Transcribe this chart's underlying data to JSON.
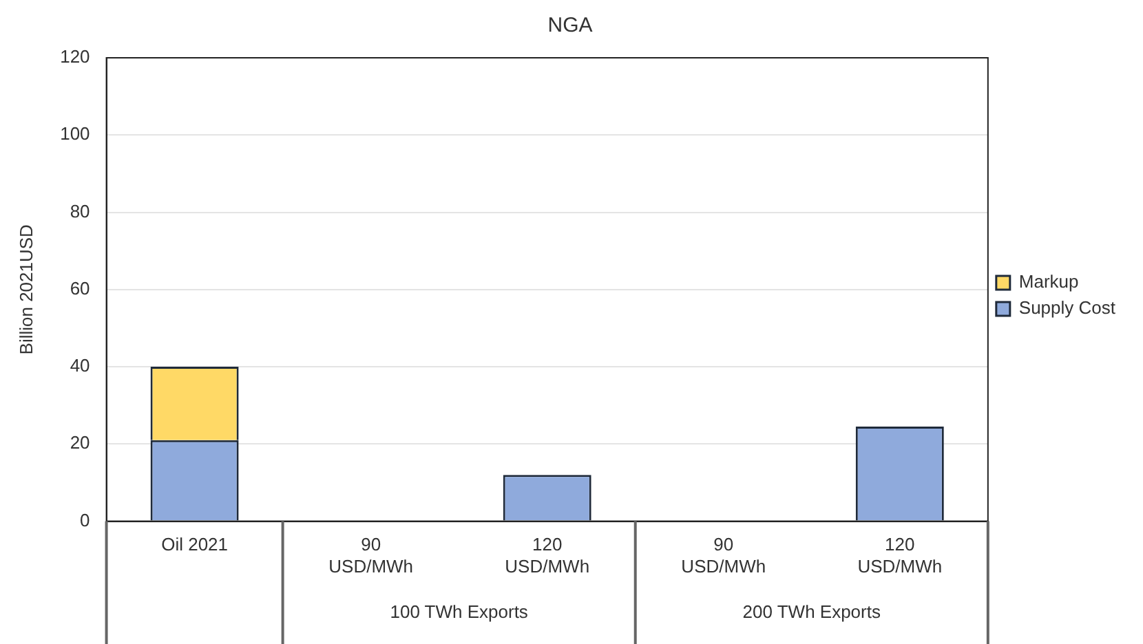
{
  "chart_data": {
    "type": "bar",
    "title": "NGA",
    "ylabel": "Billion 2021USD",
    "categories": [
      "Oil 2021",
      "90\nUSD/MWh",
      "120\nUSD/MWh",
      "90\nUSD/MWh",
      "120\nUSD/MWh"
    ],
    "series": [
      {
        "name": "Supply Cost",
        "color": "#8faadc",
        "values": [
          21,
          null,
          12,
          null,
          24.5
        ]
      },
      {
        "name": "Markup",
        "color": "#ffd966",
        "values": [
          19,
          null,
          null,
          null,
          null
        ]
      }
    ],
    "stacked": true,
    "ylim": [
      0,
      120
    ],
    "yticks": [
      0,
      20,
      40,
      60,
      80,
      100,
      120
    ],
    "grid": "y",
    "legend": "right",
    "annotations": [
      "100 TWh Exports",
      "200 TWh Exports"
    ]
  }
}
